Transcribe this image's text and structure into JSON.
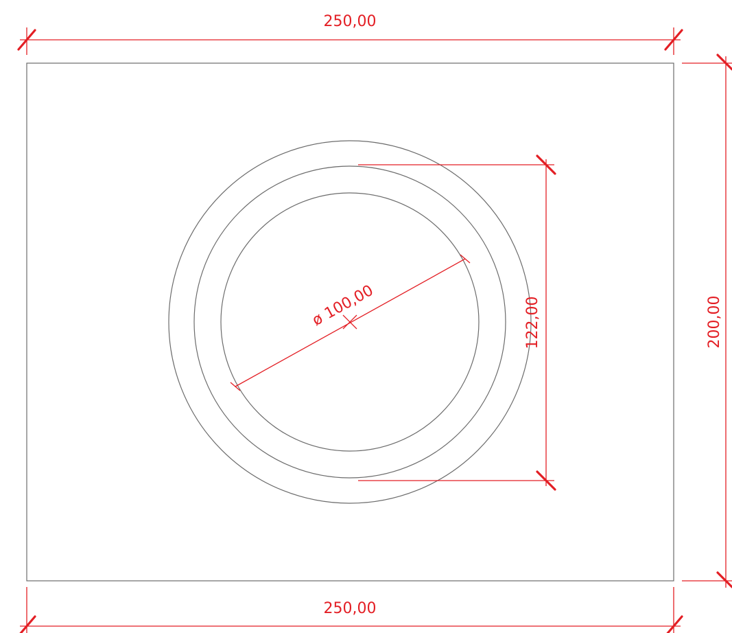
{
  "drawing": {
    "dimensions": {
      "top_width": "250,00",
      "bottom_width": "250,00",
      "right_height": "200,00",
      "ring_height": "122,00",
      "diameter": "ø 100,00"
    },
    "colors": {
      "geometry": "#6b6b6b",
      "dimension": "#e31e24",
      "background": "#ffffff"
    }
  }
}
